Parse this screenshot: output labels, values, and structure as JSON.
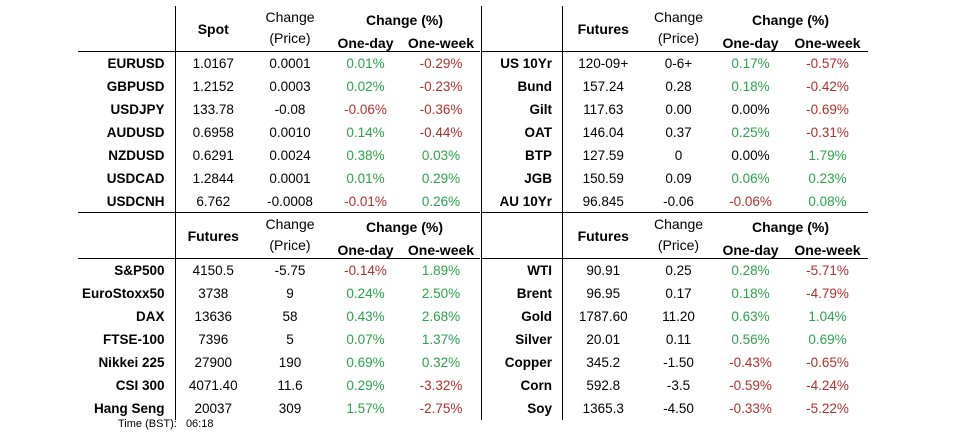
{
  "fx": {
    "headers": {
      "spot": "Spot",
      "change_price_1": "Change",
      "change_price_2": "(Price)",
      "change_pct": "Change (%)",
      "one_day": "One-day",
      "one_week": "One-week"
    },
    "rows": [
      {
        "name": "EURUSD",
        "spot": "1.0167",
        "chg": "0.0001",
        "d1": "0.01%",
        "w1": "-0.29%",
        "d1c": "pos",
        "w1c": "neg"
      },
      {
        "name": "GBPUSD",
        "spot": "1.2152",
        "chg": "0.0003",
        "d1": "0.02%",
        "w1": "-0.23%",
        "d1c": "pos",
        "w1c": "neg"
      },
      {
        "name": "USDJPY",
        "spot": "133.78",
        "chg": "-0.08",
        "d1": "-0.06%",
        "w1": "-0.36%",
        "d1c": "neg",
        "w1c": "neg"
      },
      {
        "name": "AUDUSD",
        "spot": "0.6958",
        "chg": "0.0010",
        "d1": "0.14%",
        "w1": "-0.44%",
        "d1c": "pos",
        "w1c": "neg"
      },
      {
        "name": "NZDUSD",
        "spot": "0.6291",
        "chg": "0.0024",
        "d1": "0.38%",
        "w1": "0.03%",
        "d1c": "pos",
        "w1c": "pos"
      },
      {
        "name": "USDCAD",
        "spot": "1.2844",
        "chg": "0.0001",
        "d1": "0.01%",
        "w1": "0.29%",
        "d1c": "pos",
        "w1c": "pos"
      },
      {
        "name": "USDCNH",
        "spot": "6.762",
        "chg": "-0.0008",
        "d1": "-0.01%",
        "w1": "0.26%",
        "d1c": "neg",
        "w1c": "pos"
      }
    ]
  },
  "bonds": {
    "headers": {
      "futures": "Futures",
      "change_price_1": "Change",
      "change_price_2": "(Price)",
      "change_pct": "Change (%)",
      "one_day": "One-day",
      "one_week": "One-week"
    },
    "rows": [
      {
        "name": "US 10Yr",
        "price": "120-09+",
        "chg": "0-6+",
        "d1": "0.17%",
        "w1": "-0.57%",
        "d1c": "pos",
        "w1c": "neg"
      },
      {
        "name": "Bund",
        "price": "157.24",
        "chg": "0.28",
        "d1": "0.18%",
        "w1": "-0.42%",
        "d1c": "pos",
        "w1c": "neg"
      },
      {
        "name": "Gilt",
        "price": "117.63",
        "chg": "0.00",
        "d1": "0.00%",
        "w1": "-0.69%",
        "d1c": "neu",
        "w1c": "neg"
      },
      {
        "name": "OAT",
        "price": "146.04",
        "chg": "0.37",
        "d1": "0.25%",
        "w1": "-0.31%",
        "d1c": "pos",
        "w1c": "neg"
      },
      {
        "name": "BTP",
        "price": "127.59",
        "chg": "0",
        "d1": "0.00%",
        "w1": "1.79%",
        "d1c": "neu",
        "w1c": "pos"
      },
      {
        "name": "JGB",
        "price": "150.59",
        "chg": "0.09",
        "d1": "0.06%",
        "w1": "0.23%",
        "d1c": "pos",
        "w1c": "pos"
      },
      {
        "name": "AU 10Yr",
        "price": "96.845",
        "chg": "-0.06",
        "d1": "-0.06%",
        "w1": "0.08%",
        "d1c": "neg",
        "w1c": "pos"
      }
    ]
  },
  "indices": {
    "headers": {
      "futures": "Futures",
      "change_price_1": "Change",
      "change_price_2": "(Price)",
      "change_pct": "Change (%)",
      "one_day": "One-day",
      "one_week": "One-week"
    },
    "rows": [
      {
        "name": "S&P500",
        "price": "4150.5",
        "chg": "-5.75",
        "d1": "-0.14%",
        "w1": "1.89%",
        "d1c": "neg",
        "w1c": "pos"
      },
      {
        "name": "EuroStoxx50",
        "price": "3738",
        "chg": "9",
        "d1": "0.24%",
        "w1": "2.50%",
        "d1c": "pos",
        "w1c": "pos"
      },
      {
        "name": "DAX",
        "price": "13636",
        "chg": "58",
        "d1": "0.43%",
        "w1": "2.68%",
        "d1c": "pos",
        "w1c": "pos"
      },
      {
        "name": "FTSE-100",
        "price": "7396",
        "chg": "5",
        "d1": "0.07%",
        "w1": "1.37%",
        "d1c": "pos",
        "w1c": "pos"
      },
      {
        "name": "Nikkei 225",
        "price": "27900",
        "chg": "190",
        "d1": "0.69%",
        "w1": "0.32%",
        "d1c": "pos",
        "w1c": "pos"
      },
      {
        "name": "CSI 300",
        "price": "4071.40",
        "chg": "11.6",
        "d1": "0.29%",
        "w1": "-3.32%",
        "d1c": "pos",
        "w1c": "neg"
      },
      {
        "name": "Hang Seng",
        "price": "20037",
        "chg": "309",
        "d1": "1.57%",
        "w1": "-2.75%",
        "d1c": "pos",
        "w1c": "neg"
      }
    ]
  },
  "commodities": {
    "headers": {
      "futures": "Futures",
      "change_price_1": "Change",
      "change_price_2": "(Price)",
      "change_pct": "Change (%)",
      "one_day": "One-day",
      "one_week": "One-week"
    },
    "rows": [
      {
        "name": "WTI",
        "price": "90.91",
        "chg": "0.25",
        "d1": "0.28%",
        "w1": "-5.71%",
        "d1c": "pos",
        "w1c": "neg"
      },
      {
        "name": "Brent",
        "price": "96.95",
        "chg": "0.17",
        "d1": "0.18%",
        "w1": "-4.79%",
        "d1c": "pos",
        "w1c": "neg"
      },
      {
        "name": "Gold",
        "price": "1787.60",
        "chg": "11.20",
        "d1": "0.63%",
        "w1": "1.04%",
        "d1c": "pos",
        "w1c": "pos"
      },
      {
        "name": "Silver",
        "price": "20.01",
        "chg": "0.11",
        "d1": "0.56%",
        "w1": "0.69%",
        "d1c": "pos",
        "w1c": "pos"
      },
      {
        "name": "Copper",
        "price": "345.2",
        "chg": "-1.50",
        "d1": "-0.43%",
        "w1": "-0.65%",
        "d1c": "neg",
        "w1c": "neg"
      },
      {
        "name": "Corn",
        "price": "592.8",
        "chg": "-3.5",
        "d1": "-0.59%",
        "w1": "-4.24%",
        "d1c": "neg",
        "w1c": "neg"
      },
      {
        "name": "Soy",
        "price": "1365.3",
        "chg": "-4.50",
        "d1": "-0.33%",
        "w1": "-5.22%",
        "d1c": "neg",
        "w1c": "neg"
      }
    ]
  },
  "footer": {
    "time_label": "Time (BST):",
    "time_value": "06:18"
  },
  "colors": {
    "positive": "#2aa34a",
    "negative": "#b0302f"
  }
}
